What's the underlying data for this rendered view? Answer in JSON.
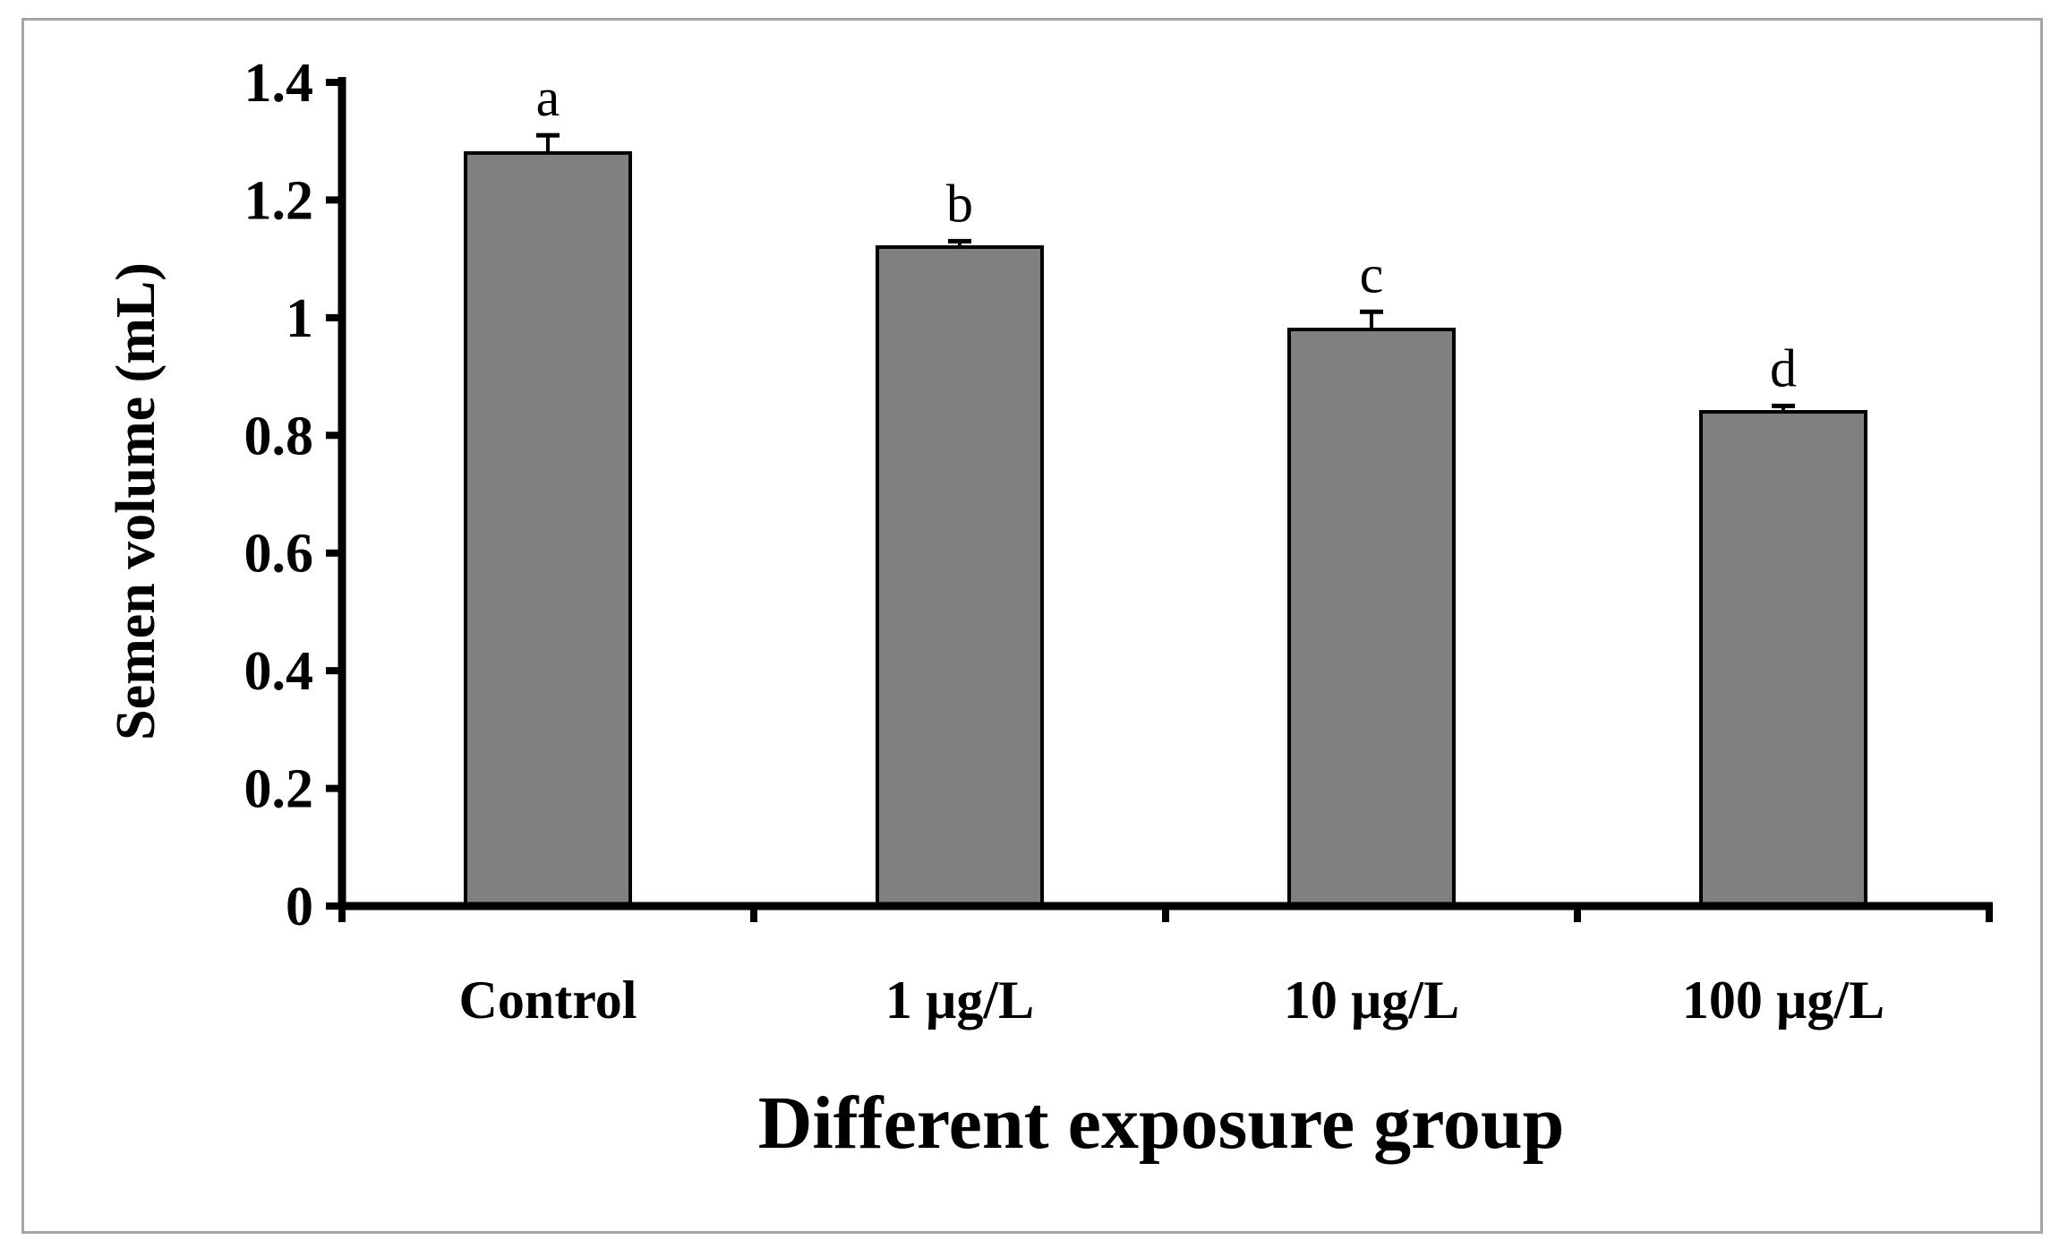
{
  "chart_data": {
    "type": "bar",
    "title": "",
    "xlabel": "Different exposure group",
    "ylabel": "Semen volume (mL)",
    "categories": [
      "Control",
      "1 µg/L",
      "10 µg/L",
      "100 µg/L"
    ],
    "values": [
      1.28,
      1.12,
      0.98,
      0.84
    ],
    "errors": [
      0.03,
      0.01,
      0.03,
      0.01
    ],
    "significance": [
      "a",
      "b",
      "c",
      "d"
    ],
    "ylim": [
      0,
      1.4
    ],
    "yticks": [
      0,
      0.2,
      0.4,
      0.6,
      0.8,
      1,
      1.2,
      1.4
    ],
    "ytick_labels": [
      "0",
      "0.2",
      "0.4",
      "0.6",
      "0.8",
      "1",
      "1.2",
      "1.4"
    ],
    "grid": false,
    "bar_color": "#808080",
    "bar_edge_color": "#000000"
  }
}
